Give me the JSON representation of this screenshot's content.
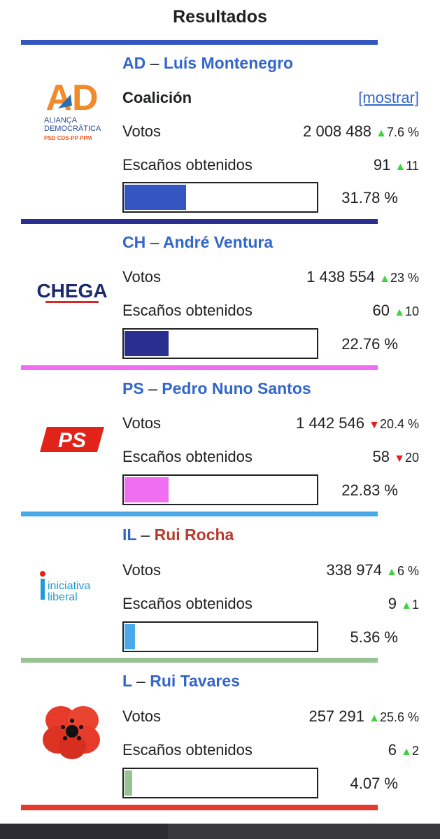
{
  "title": "Resultados",
  "labels": {
    "coalicion": "Coalición",
    "mostrar": "[mostrar]",
    "votos": "Votos",
    "escanos": "Escaños obtenidos"
  },
  "parties": [
    {
      "abbr": "AD",
      "dash": "–",
      "leader": "Luís Montenegro",
      "color": "#3356c2",
      "bar_color": "#3356c2",
      "votes": "2 008 488",
      "votes_dir": "up",
      "votes_change": "7.6 %",
      "seats": "91",
      "seats_dir": "up",
      "seats_change": "11",
      "percent": "31.78 %",
      "share": 31.78,
      "coalition": true,
      "logo": {
        "text": "AD",
        "sub1": "ALIANÇA",
        "sub2": "DEMOCRÁTICA",
        "sub3": "PSD  CDS-PP  PPM"
      }
    },
    {
      "abbr": "CH",
      "dash": "–",
      "leader": "André Ventura",
      "color": "#2a2f8f",
      "bar_color": "#2a2f8f",
      "votes": "1 438 554",
      "votes_dir": "up",
      "votes_change": "23 %",
      "seats": "60",
      "seats_dir": "up",
      "seats_change": "10",
      "percent": "22.76 %",
      "share": 22.76,
      "coalition": false,
      "logo": {
        "text": "CHEGA"
      }
    },
    {
      "abbr": "PS",
      "dash": "–",
      "leader": "Pedro Nuno Santos",
      "color": "#ef6ff0",
      "bar_color": "#ef6ff0",
      "votes": "1 442 546",
      "votes_dir": "down",
      "votes_change": "20.4 %",
      "seats": "58",
      "seats_dir": "down",
      "seats_change": "20",
      "percent": "22.83 %",
      "share": 22.83,
      "coalition": false,
      "logo": {
        "text": "PS"
      }
    },
    {
      "abbr": "IL",
      "dash": "–",
      "leader": "Rui Rocha",
      "color": "#4aa9e8",
      "bar_color": "#4aa9e8",
      "votes": "338 974",
      "votes_dir": "up",
      "votes_change": "6 %",
      "seats": "9",
      "seats_dir": "up",
      "seats_change": "1",
      "percent": "5.36 %",
      "share": 5.36,
      "coalition": false,
      "logo": {
        "text1": "iniciativa",
        "text2": "liberal"
      }
    },
    {
      "abbr": "L",
      "dash": "–",
      "leader": "Rui Tavares",
      "color": "#98c294",
      "bar_color": "#98c294",
      "votes": "257 291",
      "votes_dir": "up",
      "votes_change": "25.6 %",
      "seats": "6",
      "seats_dir": "up",
      "seats_change": "2",
      "percent": "4.07 %",
      "share": 4.07,
      "coalition": false,
      "logo": {
        "icon": "poppy-flower-icon"
      }
    }
  ]
}
